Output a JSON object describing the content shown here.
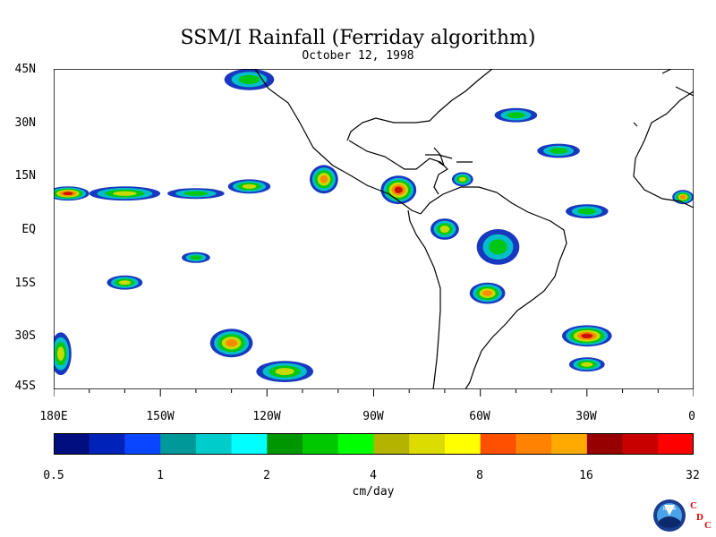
{
  "title": "SSM/I Rainfall (Ferriday algorithm)",
  "date": "October 12, 1998",
  "lat_labels": [
    "45N",
    "30N",
    "15N",
    "EQ",
    "15S",
    "30S",
    "45S"
  ],
  "lon_labels": [
    "180E",
    "150W",
    "120W",
    "90W",
    "60W",
    "30W",
    "0"
  ],
  "units": "cm/day",
  "colorbar": {
    "colors": [
      "#000e80",
      "#0022b8",
      "#0a46ff",
      "#00999a",
      "#00cccc",
      "#00ffff",
      "#009600",
      "#00c800",
      "#00ff00",
      "#b4b400",
      "#dcdc00",
      "#ffff00",
      "#ff5000",
      "#ff8200",
      "#ffaa00",
      "#960000",
      "#c80000",
      "#ff0000"
    ],
    "tick_labels": [
      "0.5",
      "1",
      "2",
      "4",
      "8",
      "16",
      "32"
    ]
  },
  "logos": {
    "noaa": "NOAA",
    "cdc": [
      "C",
      "D",
      "C"
    ]
  },
  "map": {
    "lat_range": [
      -45,
      45
    ],
    "lon_range": [
      -180,
      0
    ],
    "rain_regions": [
      {
        "lon": -176,
        "lat": 10,
        "rx": 6,
        "ry": 2,
        "level": 16
      },
      {
        "lon": -160,
        "lat": 10,
        "rx": 10,
        "ry": 2,
        "level": 4
      },
      {
        "lon": -140,
        "lat": 10,
        "rx": 8,
        "ry": 1.5,
        "level": 2
      },
      {
        "lon": -125,
        "lat": 12,
        "rx": 6,
        "ry": 2,
        "level": 4
      },
      {
        "lon": -104,
        "lat": 14,
        "rx": 4,
        "ry": 4,
        "level": 8
      },
      {
        "lon": -83,
        "lat": 11,
        "rx": 5,
        "ry": 4,
        "level": 16
      },
      {
        "lon": -70,
        "lat": 0,
        "rx": 4,
        "ry": 3,
        "level": 4
      },
      {
        "lon": -58,
        "lat": -18,
        "rx": 5,
        "ry": 3,
        "level": 8
      },
      {
        "lon": -30,
        "lat": -30,
        "rx": 7,
        "ry": 3,
        "level": 16
      },
      {
        "lon": -30,
        "lat": -38,
        "rx": 5,
        "ry": 2,
        "level": 4
      },
      {
        "lon": -130,
        "lat": -32,
        "rx": 6,
        "ry": 4,
        "level": 8
      },
      {
        "lon": -115,
        "lat": -40,
        "rx": 8,
        "ry": 3,
        "level": 4
      },
      {
        "lon": -160,
        "lat": -15,
        "rx": 5,
        "ry": 2,
        "level": 4
      },
      {
        "lon": -140,
        "lat": -8,
        "rx": 4,
        "ry": 1.5,
        "level": 2
      },
      {
        "lon": -125,
        "lat": 42,
        "rx": 7,
        "ry": 3,
        "level": 2
      },
      {
        "lon": -50,
        "lat": 32,
        "rx": 6,
        "ry": 2,
        "level": 2
      },
      {
        "lon": -38,
        "lat": 22,
        "rx": 6,
        "ry": 2,
        "level": 2
      },
      {
        "lon": -30,
        "lat": 5,
        "rx": 6,
        "ry": 2,
        "level": 2
      },
      {
        "lon": -3,
        "lat": 9,
        "rx": 3,
        "ry": 2,
        "level": 8
      },
      {
        "lon": -178,
        "lat": -35,
        "rx": 3,
        "ry": 6,
        "level": 4
      },
      {
        "lon": -65,
        "lat": 14,
        "rx": 3,
        "ry": 2,
        "level": 4
      },
      {
        "lon": -55,
        "lat": -5,
        "rx": 6,
        "ry": 5,
        "level": 2
      }
    ]
  }
}
